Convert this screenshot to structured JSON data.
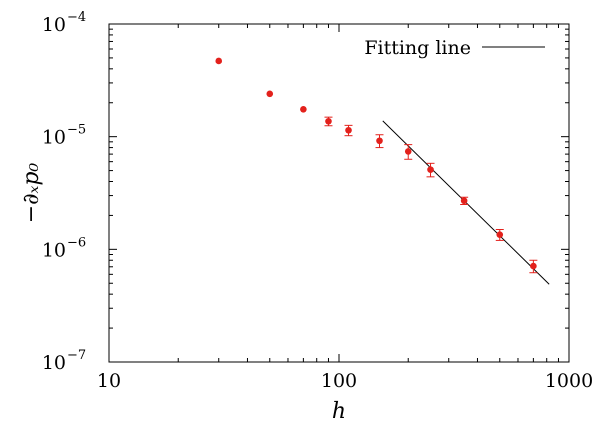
{
  "chart_data": {
    "type": "scatter",
    "xlabel": "h",
    "ylabel": "−∂ₓp₀",
    "x_scale": "log",
    "y_scale": "log",
    "xlim": [
      10,
      1000
    ],
    "ylim": [
      1e-07,
      0.0001
    ],
    "x_ticks": [
      {
        "value": 10,
        "label": "10"
      },
      {
        "value": 100,
        "label": "100"
      },
      {
        "value": 1000,
        "label": "1000"
      }
    ],
    "y_ticks": [
      {
        "value": 1e-07,
        "base": "10",
        "exp": "−7"
      },
      {
        "value": 1e-06,
        "base": "10",
        "exp": "−6"
      },
      {
        "value": 1e-05,
        "base": "10",
        "exp": "−5"
      },
      {
        "value": 0.0001,
        "base": "10",
        "exp": "−4"
      }
    ],
    "series": [
      {
        "color": "#e3211c",
        "marker": "circle",
        "points": [
          {
            "x": 30,
            "y": 4.7e-05,
            "err": 0
          },
          {
            "x": 50,
            "y": 2.4e-05,
            "err": 0
          },
          {
            "x": 70,
            "y": 1.75e-05,
            "err": 0
          },
          {
            "x": 90,
            "y": 1.37e-05,
            "err": 1.2e-06
          },
          {
            "x": 110,
            "y": 1.14e-05,
            "err": 1.2e-06
          },
          {
            "x": 150,
            "y": 9.2e-06,
            "err": 1.2e-06
          },
          {
            "x": 200,
            "y": 7.4e-06,
            "err": 1.1e-06
          },
          {
            "x": 250,
            "y": 5.1e-06,
            "err": 7e-07
          },
          {
            "x": 350,
            "y": 2.7e-06,
            "err": 2e-07
          },
          {
            "x": 500,
            "y": 1.35e-06,
            "err": 1.5e-07
          },
          {
            "x": 700,
            "y": 7.1e-07,
            "err": 9e-08
          }
        ]
      },
      {
        "name": "Fitting line",
        "color": "#000000",
        "line": true,
        "points": [
          {
            "x": 155,
            "y": 1.38e-05
          },
          {
            "x": 820,
            "y": 4.9e-07
          }
        ]
      }
    ],
    "legend": {
      "position": "top-right",
      "label": "Fitting line"
    },
    "grid": false
  }
}
